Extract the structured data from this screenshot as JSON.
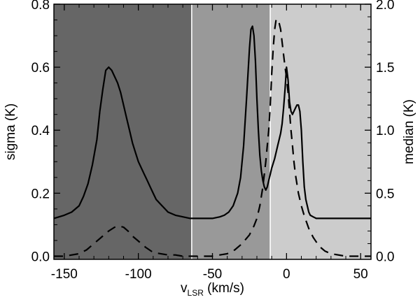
{
  "chart_data": {
    "type": "line",
    "xlabel": {
      "main": "v",
      "sub": "LSR",
      "unit": " (km/s)"
    },
    "ylabel_left": "sigma (K)",
    "ylabel_right": "median (K)",
    "xlim": [
      -157,
      57
    ],
    "ylim_left": [
      -0.01,
      0.8
    ],
    "ylim_right": [
      -0.025,
      2.0
    ],
    "x_ticks": [
      -150,
      -100,
      -50,
      0,
      50
    ],
    "x_tick_labels": [
      "-150",
      "-100",
      "-50",
      "0",
      "50"
    ],
    "y_left_ticks": [
      0.0,
      0.2,
      0.4,
      0.6,
      0.8
    ],
    "y_left_tick_labels": [
      "0.0",
      "0.2",
      "0.4",
      "0.6",
      "0.8"
    ],
    "y_right_ticks": [
      0.0,
      0.5,
      1.0,
      1.5,
      2.0
    ],
    "y_right_tick_labels": [
      "0.0",
      "0.5",
      "1.0",
      "1.5",
      "2.0"
    ],
    "regions": [
      {
        "x0": -157,
        "x1": -64,
        "color": "#666666"
      },
      {
        "x0": -64,
        "x1": -11,
        "color": "#999999"
      },
      {
        "x0": -11,
        "x1": 57,
        "color": "#cccccc"
      }
    ],
    "region_boundaries": [
      -64,
      -11
    ],
    "series": [
      {
        "name": "sigma",
        "axis": "left",
        "style": "solid",
        "x": [
          -157,
          -150,
          -145,
          -140,
          -137,
          -134,
          -131,
          -128,
          -126,
          -124,
          -122,
          -120,
          -118,
          -116,
          -114,
          -112,
          -110,
          -108,
          -106,
          -104,
          -102,
          -100,
          -98,
          -96,
          -94,
          -92,
          -90,
          -88,
          -86,
          -84,
          -82,
          -80,
          -75,
          -70,
          -65,
          -60,
          -55,
          -50,
          -45,
          -42,
          -39,
          -36,
          -33,
          -31,
          -29,
          -27,
          -25,
          -24,
          -23,
          -22,
          -21,
          -20,
          -19,
          -18,
          -17,
          -16,
          -15,
          -14,
          -13,
          -12,
          -11,
          -10,
          -8,
          -6,
          -4,
          -3,
          -2,
          -1,
          0,
          1,
          2,
          3,
          4,
          5,
          6,
          7,
          8,
          9,
          10,
          11,
          12,
          13,
          14,
          15,
          16,
          18,
          20,
          25,
          30,
          35,
          40,
          50,
          57
        ],
        "values": [
          0.12,
          0.13,
          0.14,
          0.16,
          0.19,
          0.23,
          0.29,
          0.37,
          0.46,
          0.53,
          0.59,
          0.6,
          0.59,
          0.57,
          0.55,
          0.52,
          0.48,
          0.44,
          0.4,
          0.36,
          0.33,
          0.3,
          0.28,
          0.26,
          0.24,
          0.22,
          0.2,
          0.18,
          0.17,
          0.16,
          0.15,
          0.14,
          0.13,
          0.125,
          0.12,
          0.12,
          0.12,
          0.12,
          0.125,
          0.13,
          0.14,
          0.16,
          0.2,
          0.25,
          0.35,
          0.5,
          0.66,
          0.72,
          0.73,
          0.7,
          0.62,
          0.5,
          0.4,
          0.32,
          0.27,
          0.24,
          0.22,
          0.21,
          0.22,
          0.24,
          0.26,
          0.28,
          0.31,
          0.35,
          0.39,
          0.42,
          0.47,
          0.53,
          0.6,
          0.56,
          0.49,
          0.46,
          0.45,
          0.46,
          0.47,
          0.48,
          0.48,
          0.46,
          0.4,
          0.3,
          0.22,
          0.18,
          0.16,
          0.14,
          0.13,
          0.125,
          0.12,
          0.12,
          0.12,
          0.12,
          0.12,
          0.12,
          0.12
        ]
      },
      {
        "name": "median",
        "axis": "right",
        "style": "dashed",
        "x": [
          -157,
          -150,
          -140,
          -135,
          -130,
          -125,
          -120,
          -116,
          -113,
          -110,
          -107,
          -104,
          -100,
          -95,
          -90,
          -85,
          -80,
          -75,
          -70,
          -60,
          -50,
          -40,
          -35,
          -30,
          -25,
          -22,
          -20,
          -18,
          -16,
          -14,
          -12,
          -11,
          -10,
          -9,
          -8,
          -7,
          -6,
          -5,
          -4,
          -3,
          -2,
          -1,
          0,
          1,
          2,
          3,
          4,
          5,
          6,
          8,
          10,
          12,
          15,
          18,
          22,
          26,
          30,
          40,
          50,
          57
        ],
        "values": [
          0.0,
          0.0,
          0.02,
          0.05,
          0.1,
          0.15,
          0.2,
          0.23,
          0.24,
          0.23,
          0.2,
          0.16,
          0.12,
          0.07,
          0.03,
          0.02,
          0.01,
          0.01,
          0.0,
          0.0,
          0.0,
          0.02,
          0.05,
          0.1,
          0.17,
          0.24,
          0.3,
          0.4,
          0.55,
          0.75,
          1.0,
          1.2,
          1.45,
          1.65,
          1.8,
          1.88,
          1.88,
          1.85,
          1.8,
          1.7,
          1.6,
          1.5,
          1.42,
          1.3,
          1.15,
          1.0,
          0.88,
          0.75,
          0.65,
          0.5,
          0.4,
          0.32,
          0.22,
          0.15,
          0.08,
          0.04,
          0.02,
          0.0,
          0.0,
          0.0
        ]
      }
    ]
  }
}
